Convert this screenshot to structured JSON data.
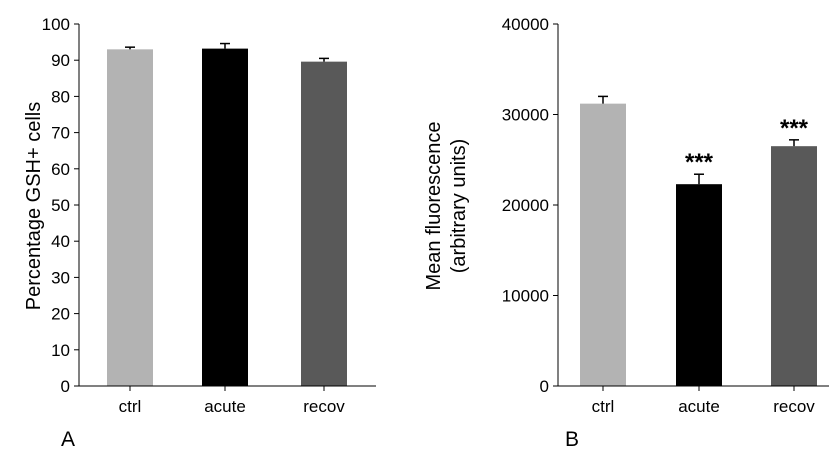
{
  "chart_data": [
    {
      "type": "bar",
      "panel_label": "A",
      "categories": [
        "ctrl",
        "acute",
        "recov"
      ],
      "values": [
        93,
        93.2,
        89.6
      ],
      "errors": [
        0.6,
        1.4,
        0.9
      ],
      "significance": [
        "",
        "",
        ""
      ],
      "colors": [
        "#b3b3b3",
        "#000000",
        "#595959"
      ],
      "ylabel": "Percentage GSH+ cells",
      "ylim": [
        0,
        100
      ],
      "yticks": [
        0,
        10,
        20,
        30,
        40,
        50,
        60,
        70,
        80,
        90,
        100
      ],
      "ytick_labels": [
        "0",
        "10",
        "20",
        "30",
        "40",
        "50",
        "60",
        "70",
        "80",
        "90",
        "100"
      ],
      "grid": false,
      "legend": "none"
    },
    {
      "type": "bar",
      "panel_label": "B",
      "categories": [
        "ctrl",
        "acute",
        "recov"
      ],
      "values": [
        31200,
        22300,
        26500
      ],
      "errors": [
        800,
        1100,
        700
      ],
      "significance": [
        "",
        "***",
        "***"
      ],
      "colors": [
        "#b3b3b3",
        "#000000",
        "#595959"
      ],
      "ylabel": "Mean fluorescence",
      "ylabel_line2": "(arbitrary units)",
      "ylim": [
        0,
        40000
      ],
      "yticks": [
        0,
        10000,
        20000,
        30000,
        40000
      ],
      "ytick_labels": [
        "0",
        "10000",
        "20000",
        "30000",
        "40000"
      ],
      "grid": false,
      "legend": "none"
    }
  ]
}
